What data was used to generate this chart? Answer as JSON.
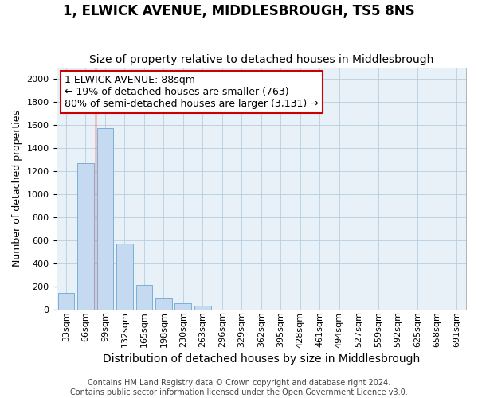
{
  "title": "1, ELWICK AVENUE, MIDDLESBROUGH, TS5 8NS",
  "subtitle": "Size of property relative to detached houses in Middlesbrough",
  "xlabel": "Distribution of detached houses by size in Middlesbrough",
  "ylabel": "Number of detached properties",
  "categories": [
    "33sqm",
    "66sqm",
    "99sqm",
    "132sqm",
    "165sqm",
    "198sqm",
    "230sqm",
    "263sqm",
    "296sqm",
    "329sqm",
    "362sqm",
    "395sqm",
    "428sqm",
    "461sqm",
    "494sqm",
    "527sqm",
    "559sqm",
    "592sqm",
    "625sqm",
    "658sqm",
    "691sqm"
  ],
  "values": [
    140,
    1270,
    1570,
    570,
    215,
    95,
    55,
    30,
    0,
    0,
    0,
    0,
    0,
    0,
    0,
    0,
    0,
    0,
    0,
    0,
    0
  ],
  "bar_color": "#c5d9f0",
  "bar_edge_color": "#7bafd4",
  "red_line_x": 1.5,
  "annotation_box_text": "1 ELWICK AVENUE: 88sqm\n← 19% of detached houses are smaller (763)\n80% of semi-detached houses are larger (3,131) →",
  "annotation_box_color": "#ffffff",
  "annotation_box_edge_color": "#cc0000",
  "ylim": [
    0,
    2100
  ],
  "yticks": [
    0,
    200,
    400,
    600,
    800,
    1000,
    1200,
    1400,
    1600,
    1800,
    2000
  ],
  "grid_color": "#b8cfe0",
  "background_color": "#ffffff",
  "plot_bg_color": "#e8f0f8",
  "footer": "Contains HM Land Registry data © Crown copyright and database right 2024.\nContains public sector information licensed under the Open Government Licence v3.0.",
  "title_fontsize": 12,
  "subtitle_fontsize": 10,
  "xlabel_fontsize": 10,
  "ylabel_fontsize": 9,
  "tick_fontsize": 8,
  "annotation_fontsize": 9,
  "footer_fontsize": 7
}
